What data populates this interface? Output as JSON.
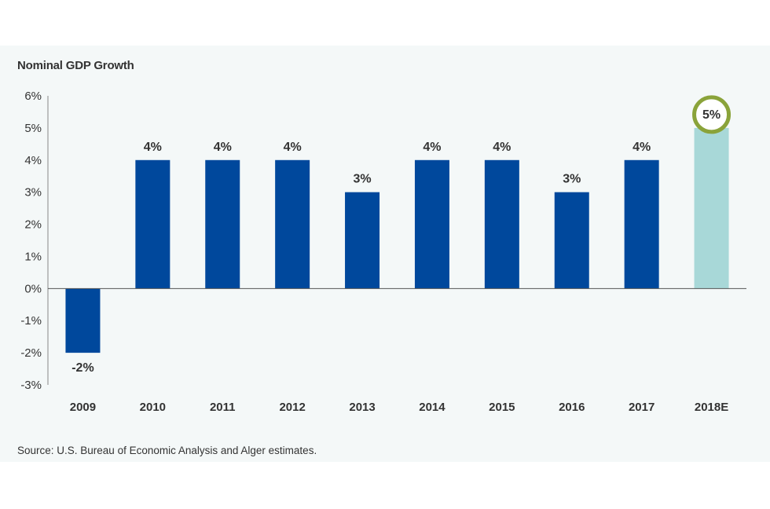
{
  "chart_data": {
    "type": "bar",
    "title": "Nominal GDP Growth",
    "source": "Source: U.S. Bureau of Economic Analysis and Alger estimates.",
    "categories": [
      "2009",
      "2010",
      "2011",
      "2012",
      "2013",
      "2014",
      "2015",
      "2016",
      "2017",
      "2018E"
    ],
    "values": [
      -2,
      4,
      4,
      4,
      3,
      4,
      4,
      3,
      4,
      5
    ],
    "data_labels": [
      "-2%",
      "4%",
      "4%",
      "4%",
      "3%",
      "4%",
      "4%",
      "3%",
      "4%",
      "5%"
    ],
    "estimate_index": 9,
    "ylim": [
      -3,
      6
    ],
    "yticks": [
      6,
      5,
      4,
      3,
      2,
      1,
      0,
      -1,
      -2,
      -3
    ],
    "ytick_labels": [
      "6%",
      "5%",
      "4%",
      "3%",
      "2%",
      "1%",
      "0%",
      "-1%",
      "-2%",
      "-3%"
    ],
    "grid": false,
    "colors": {
      "actual": "#00489c",
      "estimate": "#a8d8d8",
      "highlight_ring": "#8aa33a"
    }
  }
}
